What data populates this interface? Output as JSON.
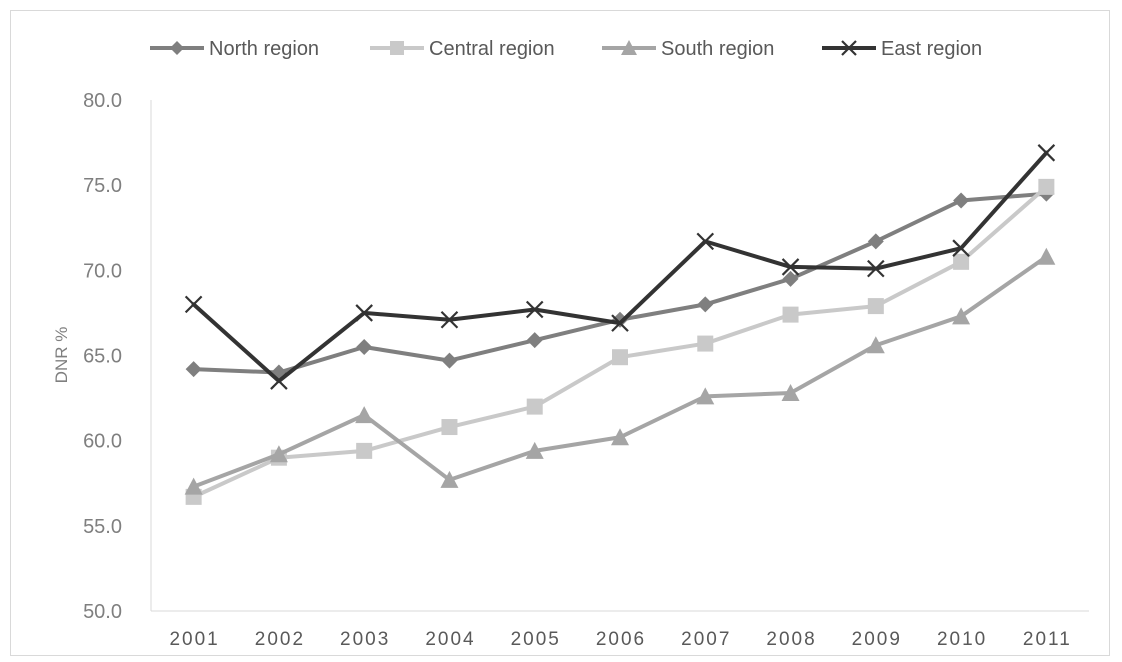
{
  "chart_data": {
    "type": "line",
    "title": "",
    "xlabel": "",
    "ylabel": "DNR %",
    "ylim": [
      50,
      80
    ],
    "ytick_step": 5,
    "ytick_labels": [
      "50.0",
      "55.0",
      "60.0",
      "65.0",
      "70.0",
      "75.0",
      "80.0"
    ],
    "grid": false,
    "legend_position": "top",
    "categories": [
      "2001",
      "2002",
      "2003",
      "2004",
      "2005",
      "2006",
      "2007",
      "2008",
      "2009",
      "2010",
      "2011"
    ],
    "series": [
      {
        "name": "North region",
        "marker": "diamond",
        "color": "#7f7f7f",
        "values": [
          64.2,
          64.0,
          65.5,
          64.7,
          65.9,
          67.1,
          68.0,
          69.5,
          71.7,
          74.1,
          74.5
        ]
      },
      {
        "name": "Central region",
        "marker": "square",
        "color": "#c9c9c9",
        "values": [
          56.7,
          59.0,
          59.4,
          60.8,
          62.0,
          64.9,
          65.7,
          67.4,
          67.9,
          70.5,
          74.9
        ]
      },
      {
        "name": "South region",
        "marker": "triangle",
        "color": "#a5a5a5",
        "values": [
          57.3,
          59.2,
          61.5,
          57.7,
          59.4,
          60.2,
          62.6,
          62.8,
          65.6,
          67.3,
          70.8
        ]
      },
      {
        "name": "East region",
        "marker": "x",
        "color": "#333333",
        "values": [
          68.0,
          63.5,
          67.5,
          67.1,
          67.7,
          66.9,
          71.7,
          70.2,
          70.1,
          71.3,
          76.9
        ]
      }
    ]
  }
}
